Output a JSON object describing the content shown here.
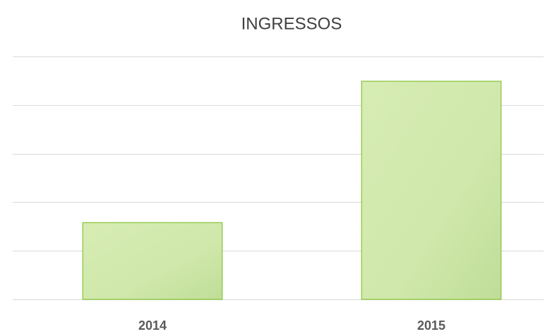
{
  "chart_data": {
    "type": "bar",
    "title": "INGRESSOS",
    "categories": [
      "2014",
      "2015"
    ],
    "values": [
      1.58,
      4.49
    ],
    "color": "#cfe8a8",
    "ylim": [
      0,
      5
    ],
    "yticks": [
      0,
      1,
      2,
      3,
      4,
      5
    ],
    "grid": true,
    "tick_labels": false
  }
}
